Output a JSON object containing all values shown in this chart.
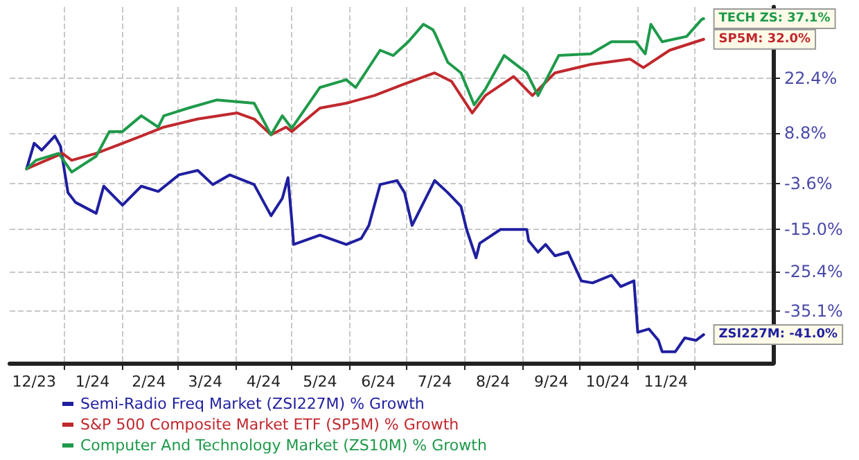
{
  "chart_data": {
    "type": "line",
    "legend": "bottom left",
    "grid": true,
    "marker": "none",
    "line_style": "solid",
    "xlim": [
      "2023-12-03",
      "2025-01-12"
    ],
    "ylim": [
      -48,
      40
    ],
    "xticks": [
      {
        "value": "2023-12-16",
        "label": "12/23"
      },
      {
        "value": "2024-01-01",
        "label": null
      },
      {
        "value": "2024-01-16",
        "label": "1/24"
      },
      {
        "value": "2024-02-01",
        "label": null
      },
      {
        "value": "2024-02-15",
        "label": "2/24"
      },
      {
        "value": "2024-03-01",
        "label": null
      },
      {
        "value": "2024-03-16",
        "label": "3/24"
      },
      {
        "value": "2024-04-01",
        "label": null
      },
      {
        "value": "2024-04-16",
        "label": "4/24"
      },
      {
        "value": "2024-05-01",
        "label": null
      },
      {
        "value": "2024-05-16",
        "label": "5/24"
      },
      {
        "value": "2024-06-01",
        "label": null
      },
      {
        "value": "2024-06-16",
        "label": "6/24"
      },
      {
        "value": "2024-07-01",
        "label": null
      },
      {
        "value": "2024-07-16",
        "label": "7/24"
      },
      {
        "value": "2024-08-01",
        "label": null
      },
      {
        "value": "2024-08-16",
        "label": "8/24"
      },
      {
        "value": "2024-09-01",
        "label": null
      },
      {
        "value": "2024-09-16",
        "label": "9/24"
      },
      {
        "value": "2024-10-01",
        "label": null
      },
      {
        "value": "2024-10-16",
        "label": "10/24"
      },
      {
        "value": "2024-11-01",
        "label": null
      },
      {
        "value": "2024-11-16",
        "label": "11/24"
      },
      {
        "value": "2024-12-01",
        "label": null
      }
    ],
    "yticks": [
      {
        "value": 22.4,
        "label": "22.4%"
      },
      {
        "value": 8.8,
        "label": "8.8%"
      },
      {
        "value": -3.6,
        "label": "-3.6%"
      },
      {
        "value": -15.0,
        "label": "-15.0%"
      },
      {
        "value": -25.4,
        "label": "-25.4%"
      },
      {
        "value": -35.1,
        "label": "-35.1%"
      }
    ],
    "series": [
      {
        "name": "Semi-Radio Freq Market (ZSI227M) % Growth",
        "color": "#1f1fa0",
        "x": [
          "2023-12-12",
          "2023-12-16",
          "2023-12-20",
          "2023-12-27",
          "2023-12-30",
          "2024-01-03",
          "2024-01-07",
          "2024-01-18",
          "2024-01-22",
          "2024-02-01",
          "2024-02-11",
          "2024-02-20",
          "2024-03-02",
          "2024-03-12",
          "2024-03-20",
          "2024-03-29",
          "2024-04-11",
          "2024-04-20",
          "2024-04-26",
          "2024-04-29",
          "2024-05-01",
          "2024-05-02",
          "2024-05-16",
          "2024-05-30",
          "2024-06-07",
          "2024-06-11",
          "2024-06-17",
          "2024-06-26",
          "2024-06-30",
          "2024-07-04",
          "2024-07-16",
          "2024-07-23",
          "2024-07-30",
          "2024-08-02",
          "2024-08-07",
          "2024-08-09",
          "2024-08-20",
          "2024-09-03",
          "2024-09-04",
          "2024-09-09",
          "2024-09-13",
          "2024-09-18",
          "2024-09-25",
          "2024-10-02",
          "2024-10-08",
          "2024-10-18",
          "2024-10-23",
          "2024-10-30",
          "2024-11-01",
          "2024-11-07",
          "2024-11-12",
          "2024-11-14",
          "2024-11-21",
          "2024-11-26",
          "2024-12-02",
          "2024-12-06"
        ],
        "values": [
          0.0,
          6.3,
          4.6,
          8.1,
          5.6,
          -5.9,
          -8.3,
          -11.0,
          -4.3,
          -9.0,
          -4.3,
          -5.6,
          -1.5,
          -0.4,
          -3.9,
          -1.5,
          -3.9,
          -11.6,
          -7.3,
          -2.2,
          -12.6,
          -18.7,
          -16.4,
          -18.7,
          -17.2,
          -14.0,
          -3.9,
          -2.9,
          -5.9,
          -14.0,
          -2.9,
          -5.9,
          -9.3,
          -15.0,
          -22.0,
          -18.4,
          -15.0,
          -15.0,
          -17.8,
          -20.6,
          -18.7,
          -21.5,
          -20.6,
          -27.7,
          -28.2,
          -26.3,
          -29.1,
          -27.7,
          -40.4,
          -39.6,
          -42.4,
          -45.2,
          -45.2,
          -41.8,
          -42.4,
          -41.0
        ]
      },
      {
        "name": "S&P 500 Composite Market ETF (SP5M) % Growth",
        "color": "#c0282d",
        "x": [
          "2023-12-12",
          "2023-12-31",
          "2024-01-05",
          "2024-01-18",
          "2024-02-01",
          "2024-02-11",
          "2024-02-23",
          "2024-03-12",
          "2024-04-02",
          "2024-04-11",
          "2024-04-20",
          "2024-04-28",
          "2024-05-01",
          "2024-05-16",
          "2024-05-30",
          "2024-06-14",
          "2024-06-29",
          "2024-07-16",
          "2024-07-25",
          "2024-08-05",
          "2024-08-12",
          "2024-08-27",
          "2024-09-06",
          "2024-09-18",
          "2024-10-07",
          "2024-10-28",
          "2024-11-04",
          "2024-11-18",
          "2024-12-06"
        ],
        "values": [
          0.0,
          3.8,
          2.1,
          3.8,
          6.3,
          8.1,
          10.3,
          12.3,
          13.8,
          12.3,
          8.4,
          10.3,
          9.2,
          15.0,
          16.2,
          18.1,
          20.8,
          23.7,
          21.6,
          13.8,
          18.1,
          22.8,
          18.1,
          23.7,
          25.8,
          27.1,
          25.0,
          29.3,
          32.0
        ]
      },
      {
        "name": "Computer And Technology Market (ZS10M) % Growth",
        "color": "#1e9a4a",
        "x": [
          "2023-12-12",
          "2023-12-17",
          "2023-12-29",
          "2024-01-05",
          "2024-01-18",
          "2024-01-25",
          "2024-02-01",
          "2024-02-11",
          "2024-02-20",
          "2024-02-23",
          "2024-03-07",
          "2024-03-22",
          "2024-04-11",
          "2024-04-20",
          "2024-04-26",
          "2024-05-01",
          "2024-05-16",
          "2024-05-30",
          "2024-06-04",
          "2024-06-17",
          "2024-06-24",
          "2024-07-02",
          "2024-07-10",
          "2024-07-15",
          "2024-07-16",
          "2024-07-23",
          "2024-07-30",
          "2024-08-06",
          "2024-08-12",
          "2024-08-22",
          "2024-09-03",
          "2024-09-09",
          "2024-09-20",
          "2024-10-07",
          "2024-10-18",
          "2024-10-31",
          "2024-11-05",
          "2024-11-08",
          "2024-11-14",
          "2024-11-27",
          "2024-12-05",
          "2024-12-06"
        ],
        "values": [
          0.0,
          2.1,
          3.8,
          -0.8,
          3.1,
          9.2,
          9.2,
          13.1,
          10.3,
          13.1,
          15.0,
          17.0,
          16.2,
          8.4,
          13.1,
          10.0,
          20.1,
          22.0,
          20.1,
          29.3,
          28.0,
          31.4,
          35.7,
          34.4,
          33.6,
          26.3,
          23.7,
          15.8,
          19.7,
          28.0,
          23.7,
          18.1,
          28.0,
          28.4,
          31.4,
          31.4,
          28.4,
          35.7,
          31.4,
          32.7,
          36.9,
          37.1
        ]
      }
    ],
    "annotations": [
      {
        "text": "ZSI227M: -41.0%",
        "x": "2024-12-06",
        "y": -41.0
      },
      {
        "text": "SP5M: 32.0%",
        "x": "2024-12-06",
        "y": 32.0
      },
      {
        "text": "TECH ZS: 37.1%",
        "x": "2024-12-06",
        "y": 37.1
      }
    ]
  }
}
